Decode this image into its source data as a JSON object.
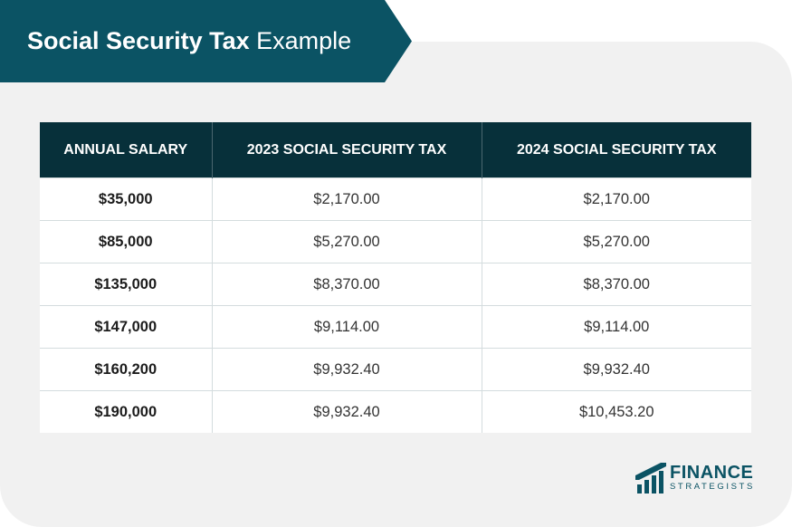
{
  "title": {
    "bold": "Social Security Tax",
    "light": "Example"
  },
  "table": {
    "headers": [
      "ANNUAL SALARY",
      "2023 SOCIAL SECURITY TAX",
      "2024 SOCIAL SECURITY TAX"
    ],
    "rows": [
      [
        "$35,000",
        "$2,170.00",
        "$2,170.00"
      ],
      [
        "$85,000",
        "$5,270.00",
        "$5,270.00"
      ],
      [
        "$135,000",
        "$8,370.00",
        "$8,370.00"
      ],
      [
        "$147,000",
        "$9,114.00",
        "$9,114.00"
      ],
      [
        "$160,200",
        "$9,932.40",
        "$9,932.40"
      ],
      [
        "$190,000",
        "$9,932.40",
        "$10,453.20"
      ]
    ]
  },
  "logo": {
    "line1": "FINANCE",
    "line2": "STRATEGISTS",
    "icon": "bar-chart-logo-icon"
  },
  "colors": {
    "banner": "#0b5364",
    "header": "#07303a",
    "card": "#f1f1f1"
  }
}
